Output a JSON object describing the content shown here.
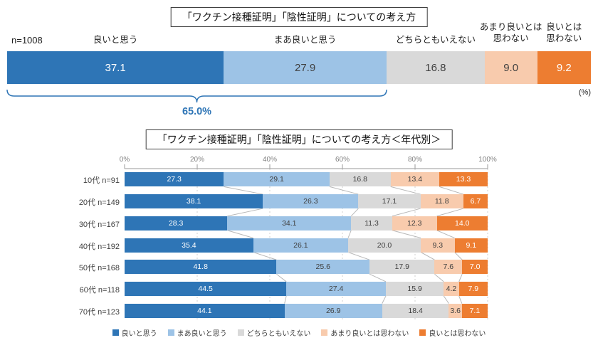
{
  "colors": {
    "series": [
      "#2E75B6",
      "#9DC3E6",
      "#D9D9D9",
      "#F8CBAD",
      "#ED7D31"
    ],
    "value_label_colors": [
      "#ffffff",
      "#404040",
      "#404040",
      "#404040",
      "#ffffff"
    ],
    "accent": "#2E75B6",
    "axis": "#9a9a9a",
    "grid": "#cfcfcf",
    "connector": "#b8b8b8"
  },
  "chart_data": [
    {
      "type": "bar",
      "stacked": true,
      "orientation": "horizontal",
      "title": "「ワクチン接種証明」「陰性証明」についての考え方",
      "n": "n=1008",
      "unit": "(%)",
      "series_labels": [
        "良いと思う",
        "まあ良いと思う",
        "どちらともいえない",
        "あまり良いとは思わない",
        "良いとは思わない"
      ],
      "series_label_lines": [
        [
          "良いと思う"
        ],
        [
          "まあ良いと思う"
        ],
        [
          "どちらともいえない"
        ],
        [
          "あまり良いとは",
          "思わない"
        ],
        [
          "良いとは",
          "思わない"
        ]
      ],
      "values": [
        37.1,
        27.9,
        16.8,
        9.0,
        9.2
      ],
      "xlim": [
        0,
        100
      ],
      "annotation": {
        "label": "65.0%",
        "span": [
          0,
          65.0
        ]
      }
    },
    {
      "type": "bar",
      "stacked": true,
      "orientation": "horizontal",
      "title": "「ワクチン接種証明」「陰性証明」についての考え方＜年代別＞",
      "xlim": [
        0,
        100
      ],
      "x_ticks": [
        "0%",
        "20%",
        "40%",
        "60%",
        "80%",
        "100%"
      ],
      "grid": true,
      "categories": [
        "10代 n=91",
        "20代 n=149",
        "30代 n=167",
        "40代 n=192",
        "50代 n=168",
        "60代 n=118",
        "70代 n=123"
      ],
      "series": [
        {
          "name": "良いと思う",
          "values": [
            27.3,
            38.1,
            28.3,
            35.4,
            41.8,
            44.5,
            44.1
          ]
        },
        {
          "name": "まあ良いと思う",
          "values": [
            29.1,
            26.3,
            34.1,
            26.1,
            25.6,
            27.4,
            26.9
          ]
        },
        {
          "name": "どちらともいえない",
          "values": [
            16.8,
            17.1,
            11.3,
            20.0,
            17.9,
            15.9,
            18.4
          ]
        },
        {
          "name": "あまり良いとは思わない",
          "values": [
            13.4,
            11.8,
            12.3,
            9.3,
            7.6,
            4.2,
            3.6
          ]
        },
        {
          "name": "良いとは思わない",
          "values": [
            13.3,
            6.7,
            14.0,
            9.1,
            7.0,
            7.9,
            7.1
          ]
        }
      ],
      "legend": [
        "良いと思う",
        "まあ良いと思う",
        "どちらともいえない",
        "あまり良いとは思わない",
        "良いとは思わない"
      ],
      "legend_position": "bottom"
    }
  ]
}
